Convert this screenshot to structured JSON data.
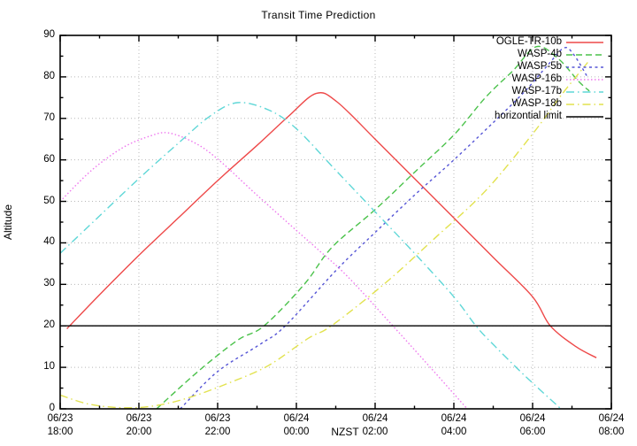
{
  "chart": {
    "title": "Transit Time Prediction",
    "xlabel": "NZST",
    "ylabel": "Altitude"
  },
  "chart_data": {
    "type": "line",
    "title": "Transit Time Prediction",
    "xlabel": "NZST",
    "ylabel": "Altitude",
    "grid": true,
    "legend_position": "top-right-inside",
    "x_axis": {
      "unit": "NZST time",
      "start_hours_after_1800": 0,
      "end_hours_after_1800": 14,
      "major_tick_every_hours": 2,
      "minor_tick_every_hours": 1,
      "ticks": [
        {
          "date": "06/23",
          "time": "18:00"
        },
        {
          "date": "06/23",
          "time": "20:00"
        },
        {
          "date": "06/23",
          "time": "22:00"
        },
        {
          "date": "06/24",
          "time": "00:00"
        },
        {
          "date": "06/24",
          "time": "02:00"
        },
        {
          "date": "06/24",
          "time": "04:00"
        },
        {
          "date": "06/24",
          "time": "06:00"
        },
        {
          "date": "06/24",
          "time": "08:00"
        }
      ]
    },
    "y_axis": {
      "label": "Altitude",
      "min": 0,
      "max": 90,
      "major_tick_every": 10,
      "minor_tick_every": 5,
      "ticks": [
        "0",
        "10",
        "20",
        "30",
        "40",
        "50",
        "60",
        "70",
        "80",
        "90"
      ]
    },
    "horizontal_limit_altitude": 20,
    "grid_color": "#b8b8b8",
    "series": [
      {
        "name": "OGLE-TR-10b",
        "color": "#ee4949",
        "dash": "solid",
        "points": [
          [
            0.17,
            19.3
          ],
          [
            1,
            27.5
          ],
          [
            2,
            37
          ],
          [
            3,
            46
          ],
          [
            4,
            55
          ],
          [
            5,
            63.5
          ],
          [
            5.8,
            70.5
          ],
          [
            6.5,
            76
          ],
          [
            7.03,
            74
          ],
          [
            8,
            65
          ],
          [
            9,
            55.5
          ],
          [
            10,
            46
          ],
          [
            11,
            36.5
          ],
          [
            12,
            27
          ],
          [
            12.45,
            20
          ],
          [
            13.1,
            15
          ],
          [
            13.62,
            12.3
          ]
        ]
      },
      {
        "name": "WASP-4b",
        "color": "#4bc24b",
        "dash": "dashed",
        "points": [
          [
            2.45,
            0
          ],
          [
            3.5,
            9
          ],
          [
            4.5,
            16.5
          ],
          [
            5.18,
            20
          ],
          [
            6.2,
            30
          ],
          [
            6.9,
            38.9
          ],
          [
            8,
            48
          ],
          [
            9,
            57
          ],
          [
            10,
            66
          ],
          [
            10.8,
            75
          ],
          [
            11.5,
            81.5
          ],
          [
            12.1,
            87.3
          ],
          [
            12.66,
            84.3
          ],
          [
            13.17,
            78.9
          ],
          [
            13.44,
            76.6
          ]
        ]
      },
      {
        "name": "WASP-5b",
        "color": "#5656d6",
        "dash": "dotted-dash",
        "points": [
          [
            3.05,
            0
          ],
          [
            4,
            9
          ],
          [
            5.07,
            15.5
          ],
          [
            5.72,
            20
          ],
          [
            7.03,
            33.6
          ],
          [
            8,
            42.5
          ],
          [
            9,
            51.5
          ],
          [
            10,
            60
          ],
          [
            11,
            69
          ],
          [
            11.8,
            76.5
          ],
          [
            12.4,
            83
          ],
          [
            12.8,
            87
          ],
          [
            13.05,
            85.3
          ],
          [
            13.38,
            80.2
          ]
        ]
      },
      {
        "name": "WASP-16b",
        "color": "#ee77ee",
        "dash": "fine-dotted",
        "points": [
          [
            0,
            50
          ],
          [
            0.8,
            57.5
          ],
          [
            1.6,
            63
          ],
          [
            2.3,
            65.8
          ],
          [
            2.75,
            66.5
          ],
          [
            3.4,
            64.2
          ],
          [
            4,
            60.2
          ],
          [
            5,
            51.5
          ],
          [
            6,
            43
          ],
          [
            6.5,
            38.8
          ],
          [
            7.3,
            31.9
          ],
          [
            8.45,
            20
          ],
          [
            9.4,
            10
          ],
          [
            10.34,
            0
          ]
        ]
      },
      {
        "name": "WASP-17b",
        "color": "#5fd7d7",
        "dash": "dash-dot",
        "points": [
          [
            0,
            37.5
          ],
          [
            1,
            46.5
          ],
          [
            2,
            55.5
          ],
          [
            3,
            64
          ],
          [
            3.8,
            70.5
          ],
          [
            4.5,
            73.8
          ],
          [
            5.3,
            72
          ],
          [
            6,
            67.5
          ],
          [
            7,
            57.5
          ],
          [
            8,
            47.5
          ],
          [
            9,
            37.5
          ],
          [
            10,
            27
          ],
          [
            10.56,
            20
          ],
          [
            11,
            15.5
          ],
          [
            11.8,
            8
          ],
          [
            12.72,
            0
          ]
        ]
      },
      {
        "name": "WASP-18b",
        "color": "#e2e24e",
        "dash": "dash-dot",
        "points": [
          [
            0,
            3.3
          ],
          [
            0.7,
            1.2
          ],
          [
            1.5,
            0.3
          ],
          [
            2.3,
            0.6
          ],
          [
            3.2,
            2.5
          ],
          [
            4.3,
            6.3
          ],
          [
            5.3,
            10.5
          ],
          [
            6.3,
            17
          ],
          [
            6.89,
            20
          ],
          [
            8.22,
            30
          ],
          [
            9.5,
            41
          ],
          [
            10.8,
            52.5
          ],
          [
            12.02,
            66.5
          ],
          [
            12.72,
            75.5
          ],
          [
            13.4,
            83.5
          ]
        ]
      },
      {
        "name": "horizontial limit",
        "color": "#000000",
        "dash": "solid",
        "points": [
          [
            0,
            20
          ],
          [
            14,
            20
          ]
        ]
      }
    ]
  },
  "legend": {
    "entries": [
      {
        "label": "OGLE-TR-10b"
      },
      {
        "label": "WASP-4b"
      },
      {
        "label": "WASP-5b"
      },
      {
        "label": "WASP-16b"
      },
      {
        "label": "WASP-17b"
      },
      {
        "label": "WASP-18b"
      },
      {
        "label": "horizontial limit"
      }
    ]
  }
}
